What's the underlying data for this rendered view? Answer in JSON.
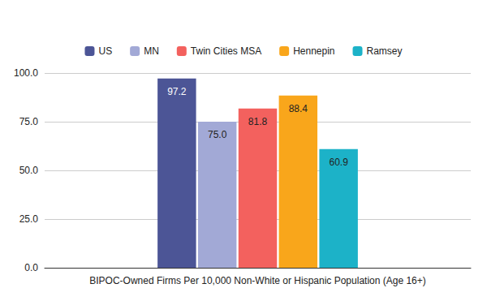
{
  "chart_data": {
    "type": "bar",
    "categories": [
      "BIPOC-Owned Firms Per 10,000 Non-White or Hispanic Population (Age 16+)"
    ],
    "series": [
      {
        "name": "US",
        "color": "#4c5596",
        "values": [
          97.2
        ],
        "value_labels": [
          "97.2"
        ]
      },
      {
        "name": "MN",
        "color": "#a2a9d6",
        "values": [
          75.0
        ],
        "value_labels": [
          "75.0"
        ]
      },
      {
        "name": "Twin Cities MSA",
        "color": "#f3615e",
        "values": [
          81.8
        ],
        "value_labels": [
          "81.8"
        ]
      },
      {
        "name": "Hennepin",
        "color": "#f9a61b",
        "values": [
          88.4
        ],
        "value_labels": [
          "88.4"
        ]
      },
      {
        "name": "Ramsey",
        "color": "#1cb2c8",
        "values": [
          60.9
        ],
        "value_labels": [
          "60.9"
        ]
      }
    ],
    "ylim": [
      0,
      100
    ],
    "yticks": [
      {
        "value": 0,
        "label": "0.0"
      },
      {
        "value": 25,
        "label": "25.0"
      },
      {
        "value": 50,
        "label": "50.0"
      },
      {
        "value": 75,
        "label": "75.0"
      },
      {
        "value": 100,
        "label": "100.0"
      }
    ],
    "grid": true,
    "legend": "top",
    "data_labels": true
  }
}
